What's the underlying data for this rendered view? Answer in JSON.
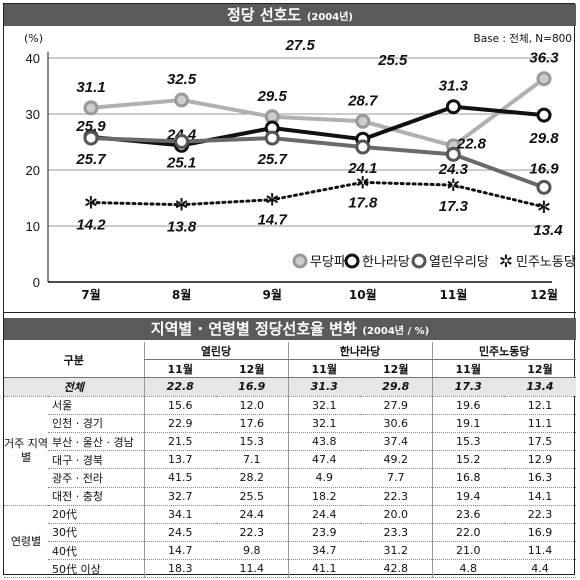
{
  "chart_banner": {
    "title": "정당 선호도",
    "subtitle": "(2004년)"
  },
  "chart_data": {
    "type": "line",
    "ylabel": "(%)",
    "base_note": "Base : 전체, N=800",
    "categories": [
      "7월",
      "8월",
      "9월",
      "10월",
      "11월",
      "12월"
    ],
    "ylim": [
      0,
      40
    ],
    "yticks": [
      0,
      10,
      20,
      30,
      40
    ],
    "legend_position": "bottom-right",
    "series": [
      {
        "name": "무당파",
        "values": [
          31.1,
          32.5,
          29.5,
          28.7,
          24.3,
          36.3
        ],
        "color": "#b0b0b0"
      },
      {
        "name": "한나라당",
        "values": [
          25.9,
          24.4,
          27.5,
          25.5,
          31.3,
          29.8
        ],
        "color": "#111111"
      },
      {
        "name": "열린우리당",
        "values": [
          25.7,
          25.1,
          25.7,
          24.1,
          22.8,
          16.9
        ],
        "color": "#6a6a6a"
      },
      {
        "name": "민주노동당",
        "values": [
          14.2,
          13.8,
          14.7,
          17.8,
          17.3,
          13.4
        ],
        "color": "#111111"
      }
    ]
  },
  "table_banner": {
    "title": "지역별 · 연령별 정당선호율 변화",
    "subtitle": "(2004년 / %)"
  },
  "table": {
    "header_label": "구분",
    "parties": [
      "열린당",
      "한나라당",
      "민주노동당"
    ],
    "months": [
      "11월",
      "12월",
      "11월",
      "12월",
      "11월",
      "12월"
    ],
    "total": {
      "label": "전체",
      "values": [
        "22.8",
        "16.9",
        "31.3",
        "29.8",
        "17.3",
        "13.4"
      ]
    },
    "sections": [
      {
        "label": "거주 지역별",
        "rows": [
          {
            "label": "서울",
            "values": [
              "15.6",
              "12.0",
              "32.1",
              "27.9",
              "19.6",
              "12.1"
            ]
          },
          {
            "label": "인천 · 경기",
            "values": [
              "22.9",
              "17.6",
              "32.1",
              "30.6",
              "19.1",
              "11.1"
            ]
          },
          {
            "label": "부산 · 울산 · 경남",
            "values": [
              "21.5",
              "15.3",
              "43.8",
              "37.4",
              "15.3",
              "17.5"
            ]
          },
          {
            "label": "대구 · 경북",
            "values": [
              "13.7",
              "7.1",
              "47.4",
              "49.2",
              "15.2",
              "12.9"
            ]
          },
          {
            "label": "광주 · 전라",
            "values": [
              "41.5",
              "28.2",
              "4.9",
              "7.7",
              "16.8",
              "16.3"
            ]
          },
          {
            "label": "대전 · 충청",
            "values": [
              "32.7",
              "25.5",
              "18.2",
              "22.3",
              "19.4",
              "14.1"
            ]
          }
        ]
      },
      {
        "label": "연령별",
        "rows": [
          {
            "label": "20代",
            "values": [
              "34.1",
              "24.4",
              "24.4",
              "20.0",
              "23.6",
              "22.3"
            ]
          },
          {
            "label": "30代",
            "values": [
              "24.5",
              "22.3",
              "23.9",
              "23.3",
              "22.0",
              "16.9"
            ]
          },
          {
            "label": "40代",
            "values": [
              "14.7",
              "9.8",
              "34.7",
              "31.2",
              "21.0",
              "11.4"
            ]
          },
          {
            "label": "50代 이상",
            "values": [
              "18.3",
              "11.4",
              "41.1",
              "42.8",
              "4.8",
              "4.4"
            ]
          }
        ]
      }
    ]
  }
}
